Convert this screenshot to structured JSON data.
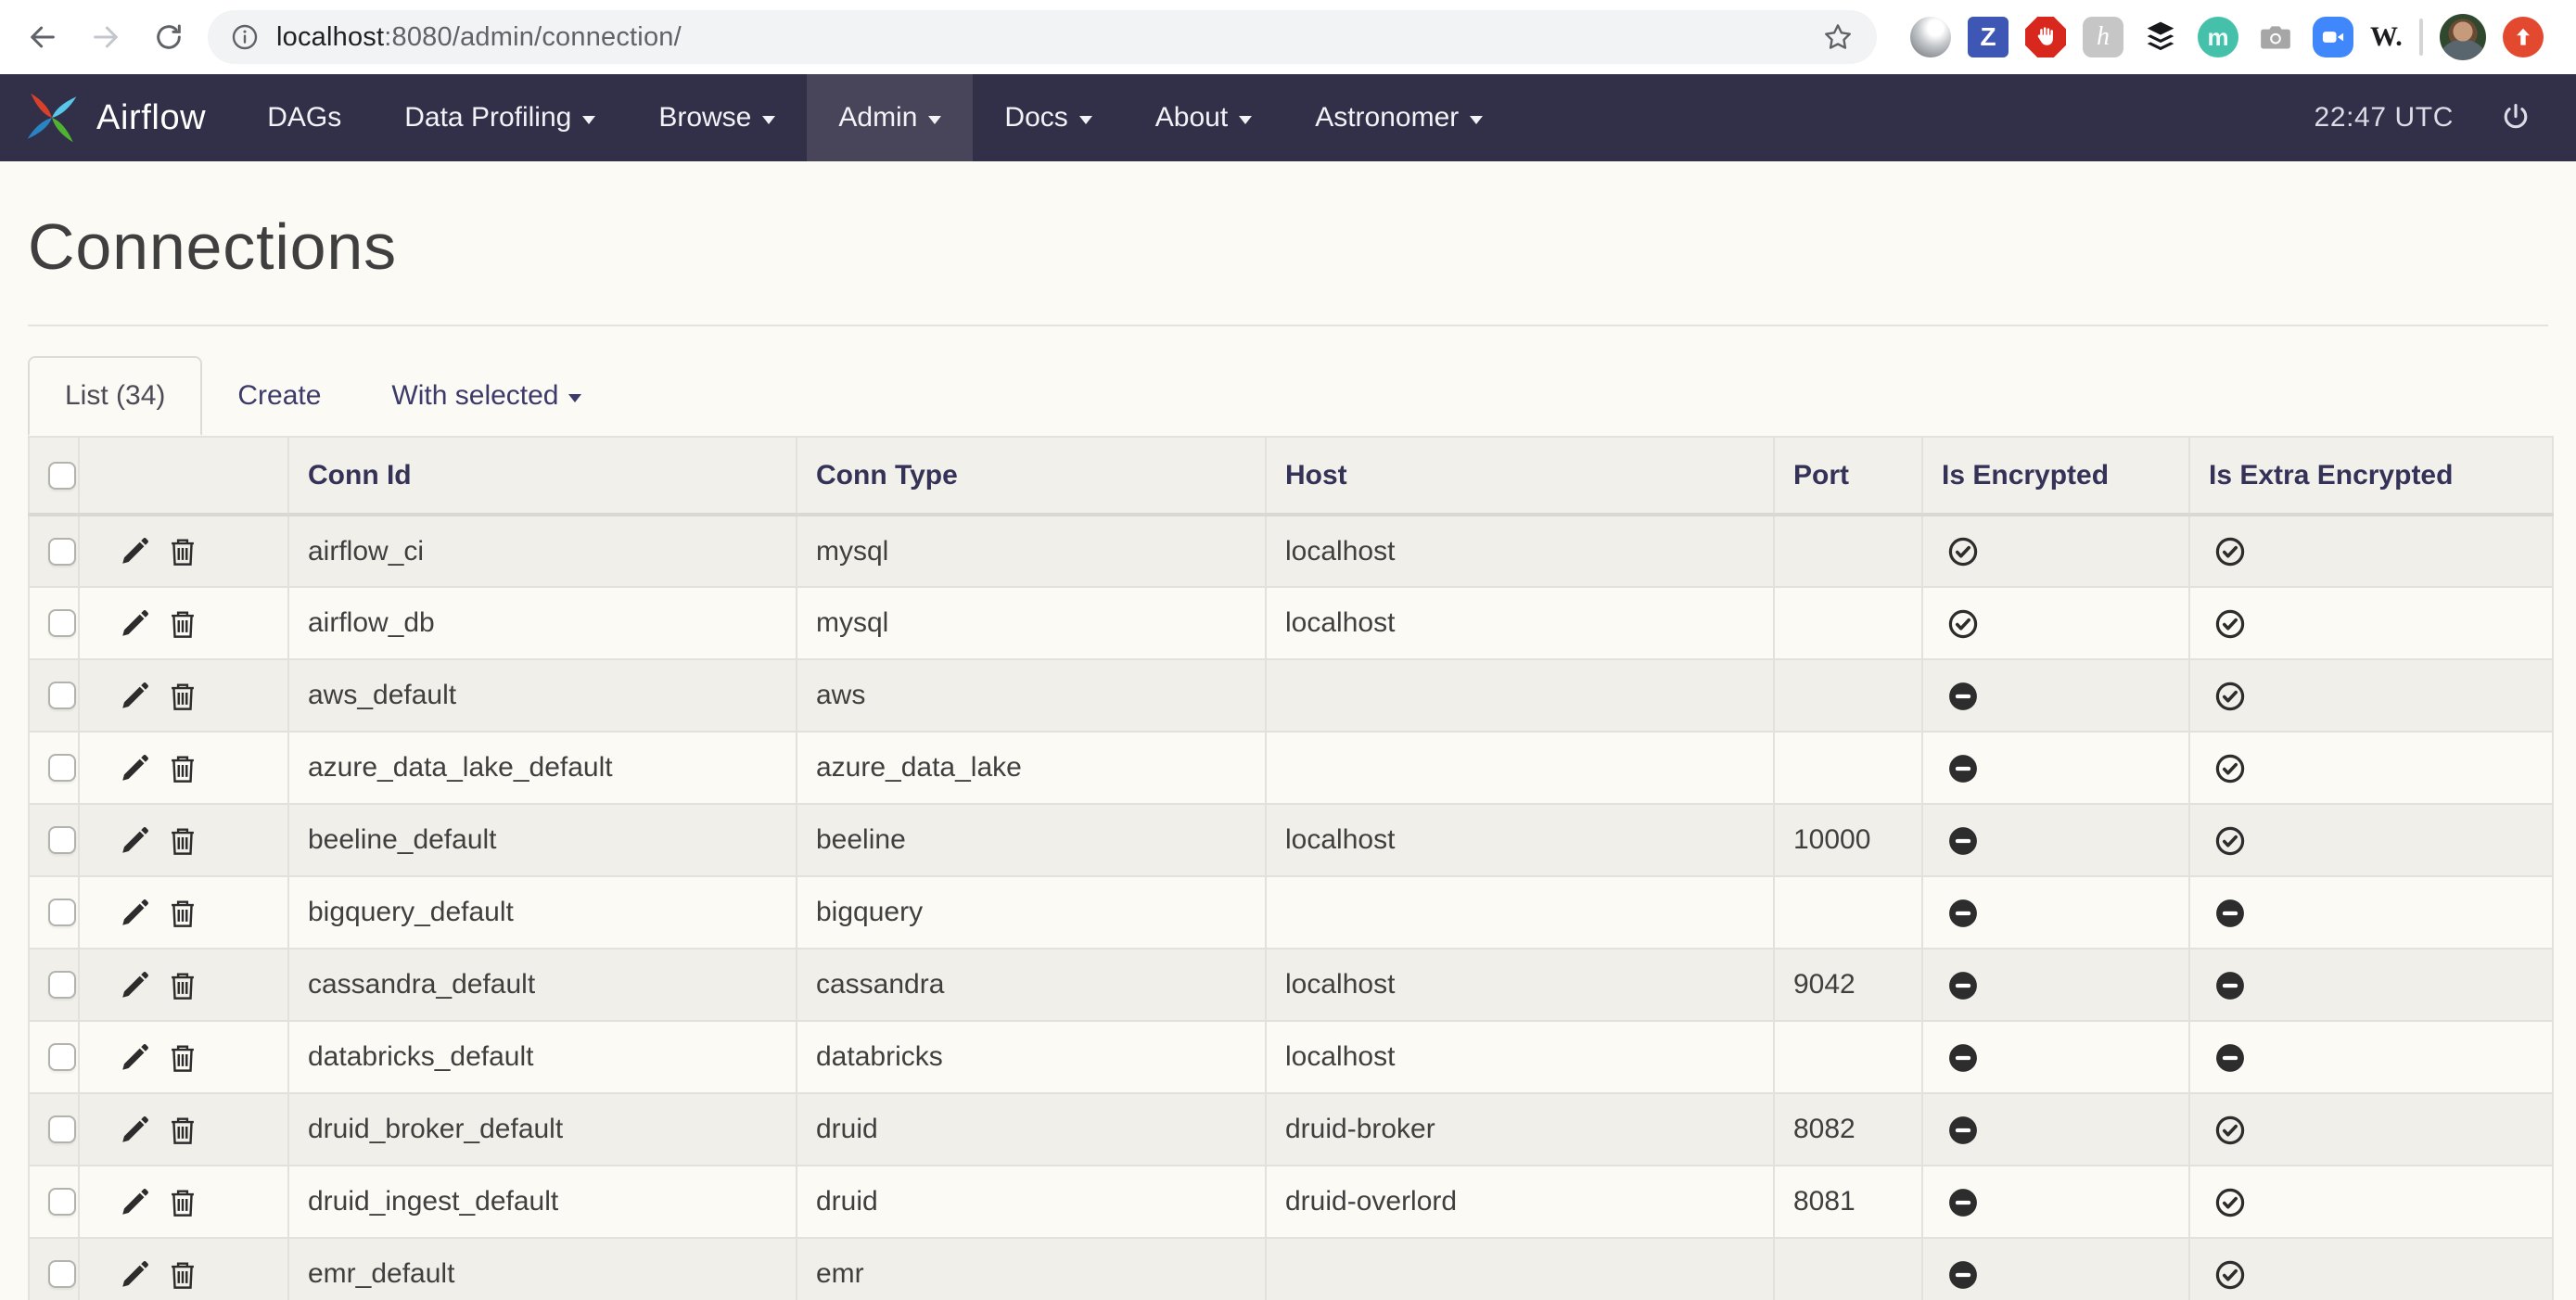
{
  "browser": {
    "url_host": "localhost",
    "url_path": ":8080/admin/connection/",
    "extensions": [
      {
        "name": "gray-orb-icon",
        "kind": "orb",
        "glyph": ""
      },
      {
        "name": "blue-z-icon",
        "kind": "z",
        "glyph": "Z"
      },
      {
        "name": "red-hand-icon",
        "kind": "hand",
        "glyph": ""
      },
      {
        "name": "gray-h-icon",
        "kind": "h",
        "glyph": "h"
      },
      {
        "name": "stacked-layers-icon",
        "kind": "layers",
        "glyph": ""
      },
      {
        "name": "teal-m-icon",
        "kind": "m",
        "glyph": "m"
      },
      {
        "name": "camera-icon",
        "kind": "cam",
        "glyph": ""
      },
      {
        "name": "video-call-icon",
        "kind": "vid",
        "glyph": ""
      },
      {
        "name": "w-text-icon",
        "kind": "w",
        "glyph": "W."
      },
      {
        "name": "toolbar-divider",
        "kind": "div",
        "glyph": ""
      },
      {
        "name": "profile-avatar",
        "kind": "avatar",
        "glyph": ""
      },
      {
        "name": "red-up-arrow-icon",
        "kind": "up",
        "glyph": ""
      }
    ]
  },
  "navbar": {
    "brand": "Airflow",
    "clock": "22:47 UTC",
    "items": [
      {
        "label": "DAGs",
        "caret": false,
        "active": false
      },
      {
        "label": "Data Profiling",
        "caret": true,
        "active": false
      },
      {
        "label": "Browse",
        "caret": true,
        "active": false
      },
      {
        "label": "Admin",
        "caret": true,
        "active": true
      },
      {
        "label": "Docs",
        "caret": true,
        "active": false
      },
      {
        "label": "About",
        "caret": true,
        "active": false
      },
      {
        "label": "Astronomer",
        "caret": true,
        "active": false
      }
    ]
  },
  "page": {
    "title": "Connections"
  },
  "tabs": [
    {
      "label": "List (34)",
      "active": true,
      "caret": false
    },
    {
      "label": "Create",
      "active": false,
      "caret": false
    },
    {
      "label": "With selected",
      "active": false,
      "caret": true
    }
  ],
  "table": {
    "columns": [
      "",
      "",
      "Conn Id",
      "Conn Type",
      "Host",
      "Port",
      "Is Encrypted",
      "Is Extra Encrypted"
    ],
    "rows": [
      {
        "conn_id": "airflow_ci",
        "conn_type": "mysql",
        "host": "localhost",
        "port": "",
        "is_encrypted": true,
        "is_extra_encrypted": true
      },
      {
        "conn_id": "airflow_db",
        "conn_type": "mysql",
        "host": "localhost",
        "port": "",
        "is_encrypted": true,
        "is_extra_encrypted": true
      },
      {
        "conn_id": "aws_default",
        "conn_type": "aws",
        "host": "",
        "port": "",
        "is_encrypted": false,
        "is_extra_encrypted": true
      },
      {
        "conn_id": "azure_data_lake_default",
        "conn_type": "azure_data_lake",
        "host": "",
        "port": "",
        "is_encrypted": false,
        "is_extra_encrypted": true
      },
      {
        "conn_id": "beeline_default",
        "conn_type": "beeline",
        "host": "localhost",
        "port": "10000",
        "is_encrypted": false,
        "is_extra_encrypted": true
      },
      {
        "conn_id": "bigquery_default",
        "conn_type": "bigquery",
        "host": "",
        "port": "",
        "is_encrypted": false,
        "is_extra_encrypted": false
      },
      {
        "conn_id": "cassandra_default",
        "conn_type": "cassandra",
        "host": "localhost",
        "port": "9042",
        "is_encrypted": false,
        "is_extra_encrypted": false
      },
      {
        "conn_id": "databricks_default",
        "conn_type": "databricks",
        "host": "localhost",
        "port": "",
        "is_encrypted": false,
        "is_extra_encrypted": false
      },
      {
        "conn_id": "druid_broker_default",
        "conn_type": "druid",
        "host": "druid-broker",
        "port": "8082",
        "is_encrypted": false,
        "is_extra_encrypted": true
      },
      {
        "conn_id": "druid_ingest_default",
        "conn_type": "druid",
        "host": "druid-overlord",
        "port": "8081",
        "is_encrypted": false,
        "is_extra_encrypted": true
      },
      {
        "conn_id": "emr_default",
        "conn_type": "emr",
        "host": "",
        "port": "",
        "is_encrypted": false,
        "is_extra_encrypted": true
      }
    ]
  },
  "colors": {
    "navbar_bg": "#322f48",
    "navbar_active_bg": "#484459",
    "page_bg": "#fbfaf5",
    "stripe_bg": "#f0efe9",
    "header_bg": "#f1f0eb",
    "link_navy": "#3c3a68",
    "logo_red": "#d9402a",
    "logo_cyan": "#59c7ea",
    "logo_green": "#4fb233",
    "logo_blue": "#2a83c2"
  }
}
